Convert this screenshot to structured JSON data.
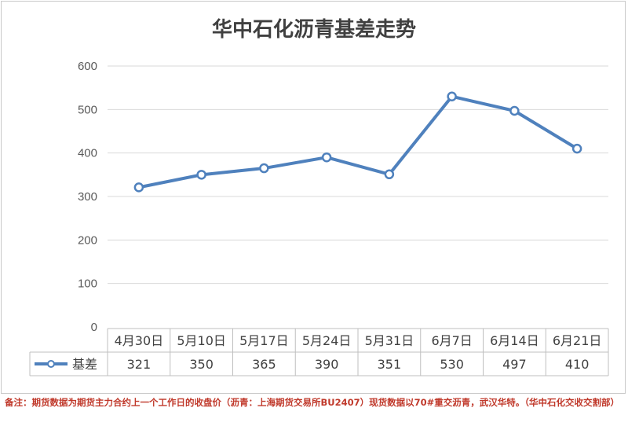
{
  "chart_data": {
    "type": "line",
    "title": "华中石化沥青基差走势",
    "categories": [
      "4月30日",
      "5月10日",
      "5月17日",
      "5月24日",
      "5月31日",
      "6月7日",
      "6月14日",
      "6月21日"
    ],
    "series": [
      {
        "name": "基差",
        "values": [
          321,
          350,
          365,
          390,
          351,
          530,
          497,
          410
        ],
        "color": "#4f81bd"
      }
    ],
    "ylim": [
      0,
      600
    ],
    "yticks": [
      "0",
      "100",
      "200",
      "300",
      "400",
      "500",
      "600"
    ],
    "grid": true,
    "legend": "data-table"
  },
  "note": "备注：期货数据为期货主力合约上一个工作日的收盘价（沥青：上海期货交易所BU2407）现货数据以70#重交沥青，武汉华特。（华中石化交收交割部）"
}
